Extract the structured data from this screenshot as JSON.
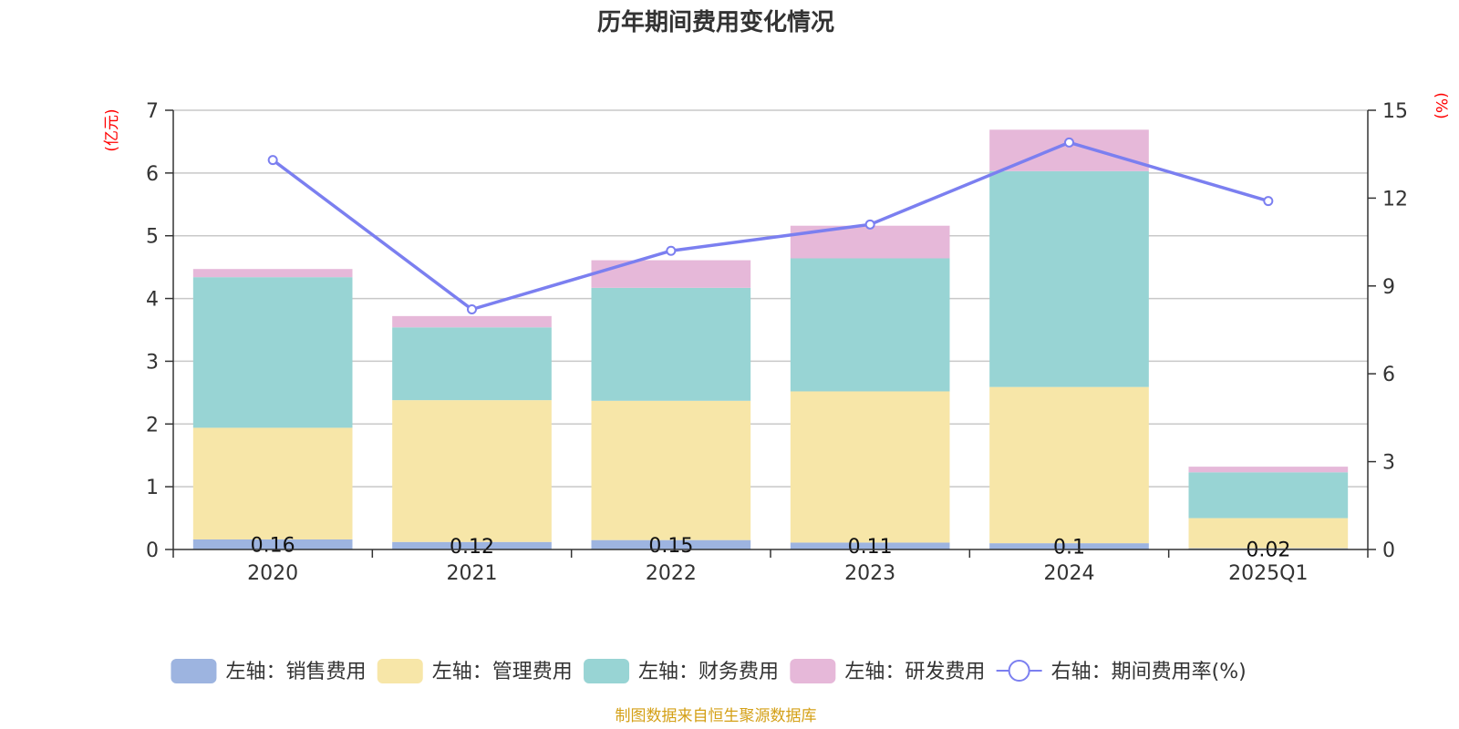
{
  "chart_data": {
    "type": "bar",
    "title": "历年期间费用变化情况",
    "left_unit": "(亿元)",
    "right_unit": "(%)",
    "categories": [
      "2020",
      "2021",
      "2022",
      "2023",
      "2024",
      "2025Q1"
    ],
    "y_left": {
      "min": 0,
      "max": 7,
      "ticks": [
        0,
        1,
        2,
        3,
        4,
        5,
        6,
        7
      ]
    },
    "y_right": {
      "min": 0,
      "max": 15,
      "ticks": [
        0,
        3,
        6,
        9,
        12,
        15
      ]
    },
    "series": [
      {
        "name": "左轴：销售费用",
        "type": "bar",
        "axis": "left",
        "color": "#9db4e0",
        "values": [
          0.16,
          0.12,
          0.15,
          0.11,
          0.1,
          0.02
        ],
        "labels": [
          "0.16",
          "0.12",
          "0.15",
          "0.11",
          "0.1",
          "0.02"
        ]
      },
      {
        "name": "左轴：管理费用",
        "type": "bar",
        "axis": "left",
        "color": "#f7e6a8",
        "values": [
          1.78,
          2.26,
          2.22,
          2.41,
          2.49,
          0.48
        ]
      },
      {
        "name": "左轴：财务费用",
        "type": "bar",
        "axis": "left",
        "color": "#98d4d4",
        "values": [
          2.4,
          1.16,
          1.8,
          2.12,
          3.44,
          0.73
        ]
      },
      {
        "name": "左轴：研发费用",
        "type": "bar",
        "axis": "left",
        "color": "#e6b8d9",
        "values": [
          0.13,
          0.18,
          0.44,
          0.52,
          0.66,
          0.09
        ]
      },
      {
        "name": "右轴：期间费用率(%)",
        "type": "line",
        "axis": "right",
        "color": "#7b7ff0",
        "values": [
          13.3,
          8.2,
          10.2,
          11.1,
          13.9,
          11.9
        ]
      }
    ],
    "grid": true,
    "legend_position": "bottom"
  },
  "source": "制图数据来自恒生聚源数据库"
}
